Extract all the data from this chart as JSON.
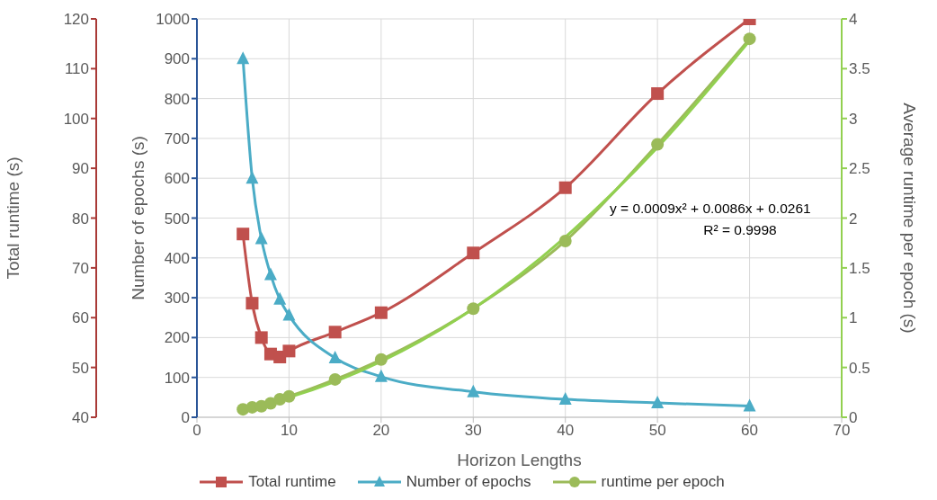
{
  "chart_data": {
    "type": "line",
    "xlabel": "Horizon Lengths",
    "ylabel": "Total runtime (s)",
    "y2label": "Number of epochs (s)",
    "y3label": "Average runtime per epoch (s)",
    "x": [
      5,
      6,
      7,
      8,
      9,
      10,
      15,
      20,
      30,
      40,
      50,
      60
    ],
    "xlim": [
      0,
      70
    ],
    "xticks": [
      0,
      10,
      20,
      30,
      40,
      50,
      60,
      70
    ],
    "ylim": [
      40,
      120
    ],
    "yticks": [
      40,
      50,
      60,
      70,
      80,
      90,
      100,
      110,
      120
    ],
    "y2lim": [
      0,
      1000
    ],
    "y2ticks": [
      0,
      100,
      200,
      300,
      400,
      500,
      600,
      700,
      800,
      900,
      1000
    ],
    "y3lim": [
      0,
      4
    ],
    "y3ticks": [
      0,
      0.5,
      1,
      1.5,
      2,
      2.5,
      3,
      3.5,
      4
    ],
    "series": [
      {
        "name": "Total runtime",
        "color": "#c0504d",
        "marker": "square",
        "values": [
          76.8,
          62.9,
          56.0,
          52.7,
          52.1,
          53.3,
          57.1,
          61.0,
          73.0,
          86.1,
          105.0,
          120.0
        ]
      },
      {
        "name": "Number of epochs",
        "color": "#4bacc6",
        "marker": "triangle",
        "axis": "y2",
        "values": [
          900,
          600,
          448,
          358,
          296,
          256,
          149,
          102,
          64,
          45,
          36,
          28
        ]
      },
      {
        "name": "runtime per epoch",
        "color": "#9bbb59",
        "marker": "circle",
        "axis": "y3",
        "values": [
          0.08,
          0.1,
          0.11,
          0.14,
          0.18,
          0.21,
          0.38,
          0.58,
          1.09,
          1.77,
          2.74,
          3.8
        ]
      },
      {
        "type": "line",
        "color": "#92d050",
        "marker": "none",
        "axis": "y3",
        "x": [
          5,
          10,
          20,
          30,
          40,
          50,
          60
        ],
        "values": [
          0.09,
          0.2,
          0.56,
          1.09,
          1.81,
          2.71,
          3.78
        ]
      }
    ],
    "annotations": [
      "y = 0.0009x² + 0.0086x + 0.0261",
      "R² = 0.9998"
    ],
    "grid": true,
    "legend": "bottom"
  }
}
